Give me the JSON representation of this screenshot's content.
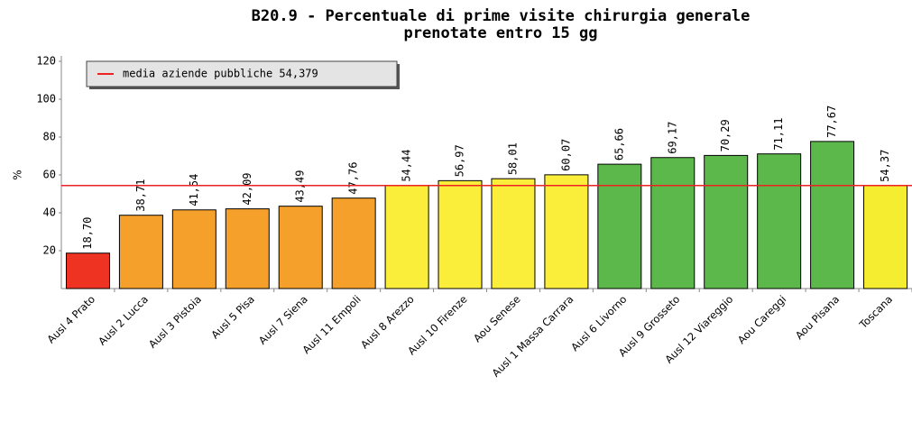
{
  "chart_data": {
    "type": "bar",
    "title": [
      "B20.9 - Percentuale di prime visite chirurgia generale",
      "prenotate entro 15 gg"
    ],
    "y_label": "%",
    "categories": [
      "Ausl 4 Prato",
      "Ausl 2 Lucca",
      "Ausl 3 Pistoia",
      "Ausl 5 Pisa",
      "Ausl 7 Siena",
      "Ausl 11 Empoli",
      "Ausl 8 Arezzo",
      "Ausl 10 Firenze",
      "Aou Senese",
      "Ausl 1 Massa Carrara",
      "Ausl 6 Livorno",
      "Ausl 9 Grosseto",
      "Ausl 12 Viareggio",
      "Aou Careggi",
      "Aou Pisana",
      "Toscana"
    ],
    "values": [
      18.7,
      38.71,
      41.54,
      42.09,
      43.49,
      47.76,
      54.44,
      56.97,
      58.01,
      60.07,
      65.66,
      69.17,
      70.29,
      71.11,
      77.67,
      54.37
    ],
    "value_labels": [
      "18,70",
      "38,71",
      "41,54",
      "42,09",
      "43,49",
      "47,76",
      "54,44",
      "56,97",
      "58,01",
      "60,07",
      "65,66",
      "69,17",
      "70,29",
      "71,11",
      "77,67",
      "54,37"
    ],
    "colors": [
      "#ee3322",
      "#f5a02a",
      "#f5a02a",
      "#f5a02a",
      "#f5a02a",
      "#f5a02a",
      "#fbee3a",
      "#fbee3a",
      "#fbee3a",
      "#fbee3a",
      "#5cb84a",
      "#5cb84a",
      "#5cb84a",
      "#5cb84a",
      "#5cb84a",
      "#f5ee30"
    ],
    "reference": {
      "label": "media aziende pubbliche 54,379",
      "value": 54.379,
      "color": "#ee2222"
    },
    "ylim": [
      0,
      120
    ],
    "yticks": [
      20,
      40,
      60,
      80,
      100,
      120
    ]
  }
}
